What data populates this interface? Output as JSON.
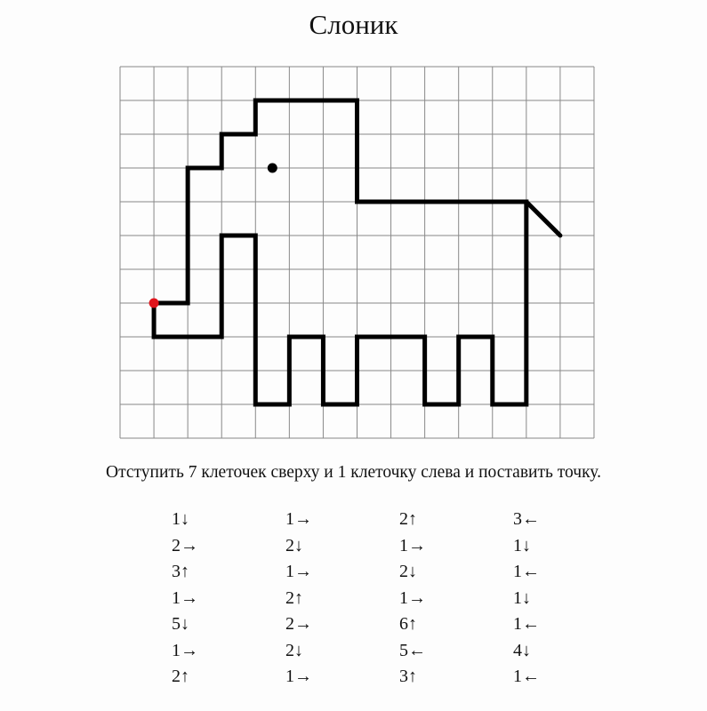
{
  "title": "Слоник",
  "instruction": "Отступить 7 клеточек сверху и 1 клеточку слева и поставить точку.",
  "grid": {
    "columns": 14,
    "rows": 11,
    "start_point": [
      1,
      7
    ],
    "start_color": "#e0141c",
    "line_color": "#000000",
    "eye": [
      4.5,
      3
    ],
    "tail": [
      [
        12,
        4
      ],
      [
        13,
        5
      ]
    ]
  },
  "steps": [
    [
      "1↓",
      "2→",
      "3↑",
      "1→",
      "5↓",
      "1→",
      "2↑"
    ],
    [
      "1→",
      "2↓",
      "1→",
      "2↑",
      "2→",
      "2↓",
      "1→"
    ],
    [
      "2↑",
      "1→",
      "2↓",
      "1→",
      "6↑",
      "5←",
      "3↑"
    ],
    [
      "3←",
      "1↓",
      "1←",
      "1↓",
      "1←",
      "4↓",
      "1←"
    ]
  ]
}
